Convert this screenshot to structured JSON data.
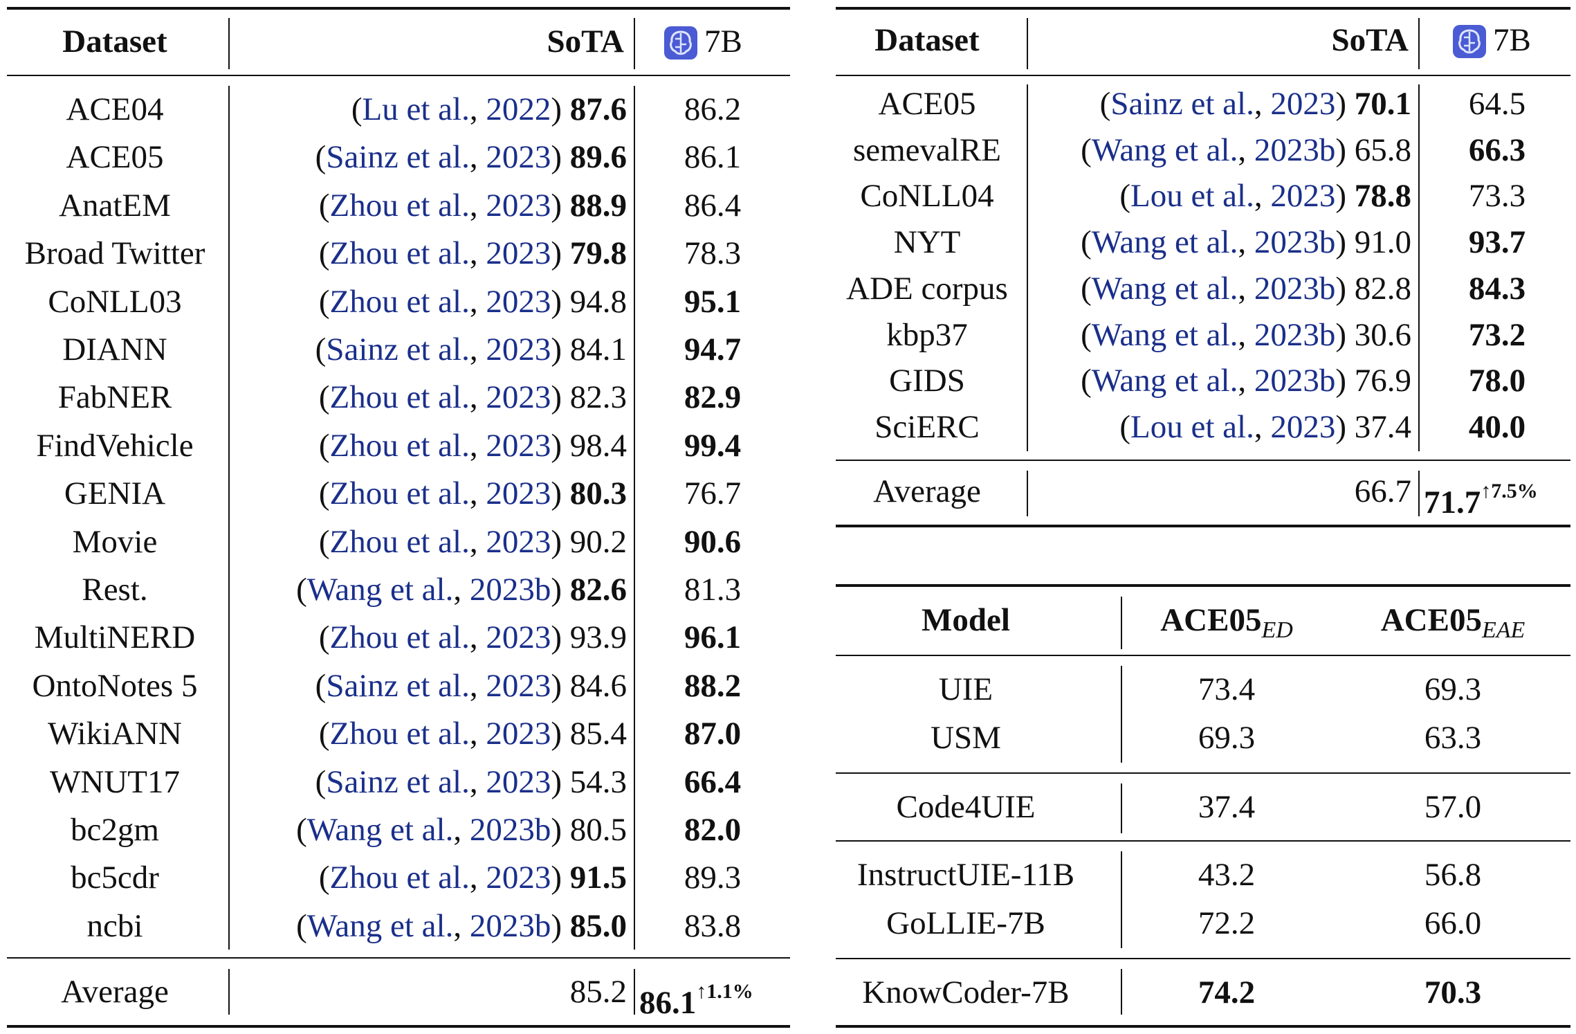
{
  "ner_table": {
    "headers": {
      "dataset": "Dataset",
      "sota": "SoTA",
      "model": "7B"
    },
    "rows": [
      {
        "dataset": "ACE04",
        "cite_open": "(",
        "cite_author": "Lu et al.",
        "cite_sep": ", ",
        "cite_year": "2022",
        "cite_close": ")",
        "sota": "87.6",
        "model": "86.2",
        "bold": "sota"
      },
      {
        "dataset": "ACE05",
        "cite_open": "(",
        "cite_author": "Sainz et al.",
        "cite_sep": ", ",
        "cite_year": "2023",
        "cite_close": ")",
        "sota": "89.6",
        "model": "86.1",
        "bold": "sota"
      },
      {
        "dataset": "AnatEM",
        "cite_open": "(",
        "cite_author": "Zhou et al.",
        "cite_sep": ", ",
        "cite_year": "2023",
        "cite_close": ")",
        "sota": "88.9",
        "model": "86.4",
        "bold": "sota"
      },
      {
        "dataset": "Broad Twitter",
        "cite_open": "(",
        "cite_author": "Zhou et al.",
        "cite_sep": ", ",
        "cite_year": "2023",
        "cite_close": ")",
        "sota": "79.8",
        "model": "78.3",
        "bold": "sota"
      },
      {
        "dataset": "CoNLL03",
        "cite_open": "(",
        "cite_author": "Zhou et al.",
        "cite_sep": ", ",
        "cite_year": "2023",
        "cite_close": ")",
        "sota": "94.8",
        "model": "95.1",
        "bold": "model"
      },
      {
        "dataset": "DIANN",
        "cite_open": "(",
        "cite_author": "Sainz et al.",
        "cite_sep": ", ",
        "cite_year": "2023",
        "cite_close": ")",
        "sota": "84.1",
        "model": "94.7",
        "bold": "model"
      },
      {
        "dataset": "FabNER",
        "cite_open": "(",
        "cite_author": "Zhou et al.",
        "cite_sep": ", ",
        "cite_year": "2023",
        "cite_close": ")",
        "sota": "82.3",
        "model": "82.9",
        "bold": "model"
      },
      {
        "dataset": "FindVehicle",
        "cite_open": "(",
        "cite_author": "Zhou et al.",
        "cite_sep": ", ",
        "cite_year": "2023",
        "cite_close": ")",
        "sota": "98.4",
        "model": "99.4",
        "bold": "model"
      },
      {
        "dataset": "GENIA",
        "cite_open": "(",
        "cite_author": "Zhou et al.",
        "cite_sep": ", ",
        "cite_year": "2023",
        "cite_close": ")",
        "sota": "80.3",
        "model": "76.7",
        "bold": "sota"
      },
      {
        "dataset": "Movie",
        "cite_open": "(",
        "cite_author": "Zhou et al.",
        "cite_sep": ", ",
        "cite_year": "2023",
        "cite_close": ")",
        "sota": "90.2",
        "model": "90.6",
        "bold": "model"
      },
      {
        "dataset": "Rest.",
        "cite_open": "(",
        "cite_author": "Wang et al.",
        "cite_sep": ", ",
        "cite_year": "2023b",
        "cite_close": ")",
        "sota": "82.6",
        "model": "81.3",
        "bold": "sota"
      },
      {
        "dataset": "MultiNERD",
        "cite_open": "(",
        "cite_author": "Zhou et al.",
        "cite_sep": ", ",
        "cite_year": "2023",
        "cite_close": ")",
        "sota": "93.9",
        "model": "96.1",
        "bold": "model"
      },
      {
        "dataset": "OntoNotes 5",
        "cite_open": "(",
        "cite_author": "Sainz et al.",
        "cite_sep": ", ",
        "cite_year": "2023",
        "cite_close": ")",
        "sota": "84.6",
        "model": "88.2",
        "bold": "model"
      },
      {
        "dataset": "WikiANN",
        "cite_open": "(",
        "cite_author": "Zhou et al.",
        "cite_sep": ", ",
        "cite_year": "2023",
        "cite_close": ")",
        "sota": "85.4",
        "model": "87.0",
        "bold": "model"
      },
      {
        "dataset": "WNUT17",
        "cite_open": "(",
        "cite_author": "Sainz et al.",
        "cite_sep": ", ",
        "cite_year": "2023",
        "cite_close": ")",
        "sota": "54.3",
        "model": "66.4",
        "bold": "model"
      },
      {
        "dataset": "bc2gm",
        "cite_open": "(",
        "cite_author": "Wang et al.",
        "cite_sep": ", ",
        "cite_year": "2023b",
        "cite_close": ")",
        "sota": "80.5",
        "model": "82.0",
        "bold": "model"
      },
      {
        "dataset": "bc5cdr",
        "cite_open": "(",
        "cite_author": "Zhou et al.",
        "cite_sep": ", ",
        "cite_year": "2023",
        "cite_close": ")",
        "sota": "91.5",
        "model": "89.3",
        "bold": "sota"
      },
      {
        "dataset": "ncbi",
        "cite_open": "(",
        "cite_author": "Wang et al.",
        "cite_sep": ", ",
        "cite_year": "2023b",
        "cite_close": ")",
        "sota": "85.0",
        "model": "83.8",
        "bold": "sota"
      }
    ],
    "average": {
      "label": "Average",
      "sota": "85.2",
      "model": "86.1",
      "gain": "↑1.1%"
    }
  },
  "re_table": {
    "headers": {
      "dataset": "Dataset",
      "sota": "SoTA",
      "model": "7B"
    },
    "rows": [
      {
        "dataset": "ACE05",
        "cite_open": "(",
        "cite_author": "Sainz et al.",
        "cite_sep": ", ",
        "cite_year": "2023",
        "cite_close": ")",
        "sota": "70.1",
        "model": "64.5",
        "bold": "sota"
      },
      {
        "dataset": "semevalRE",
        "cite_open": "(",
        "cite_author": "Wang et al.",
        "cite_sep": ", ",
        "cite_year": "2023b",
        "cite_close": ")",
        "sota": "65.8",
        "model": "66.3",
        "bold": "model"
      },
      {
        "dataset": "CoNLL04",
        "cite_open": "(",
        "cite_author": "Lou et al.",
        "cite_sep": ", ",
        "cite_year": "2023",
        "cite_close": ")",
        "sota": "78.8",
        "model": "73.3",
        "bold": "sota"
      },
      {
        "dataset": "NYT",
        "cite_open": "(",
        "cite_author": "Wang et al.",
        "cite_sep": ", ",
        "cite_year": "2023b",
        "cite_close": ")",
        "sota": "91.0",
        "model": "93.7",
        "bold": "model"
      },
      {
        "dataset": "ADE corpus",
        "cite_open": "(",
        "cite_author": "Wang et al.",
        "cite_sep": ", ",
        "cite_year": "2023b",
        "cite_close": ")",
        "sota": "82.8",
        "model": "84.3",
        "bold": "model"
      },
      {
        "dataset": "kbp37",
        "cite_open": "(",
        "cite_author": "Wang et al.",
        "cite_sep": ", ",
        "cite_year": "2023b",
        "cite_close": ")",
        "sota": "30.6",
        "model": "73.2",
        "bold": "model"
      },
      {
        "dataset": "GIDS",
        "cite_open": "(",
        "cite_author": "Wang et al.",
        "cite_sep": ", ",
        "cite_year": "2023b",
        "cite_close": ")",
        "sota": "76.9",
        "model": "78.0",
        "bold": "model"
      },
      {
        "dataset": "SciERC",
        "cite_open": "(",
        "cite_author": "Lou et al.",
        "cite_sep": ", ",
        "cite_year": "2023",
        "cite_close": ")",
        "sota": "37.4",
        "model": "40.0",
        "bold": "model"
      }
    ],
    "average": {
      "label": "Average",
      "sota": "66.7",
      "model": "71.7",
      "gain": "↑7.5%"
    }
  },
  "ee_table": {
    "headers": {
      "model": "Model",
      "ed_main": "ACE05",
      "ed_sub": "ED",
      "eae_main": "ACE05",
      "eae_sub": "EAE"
    },
    "groups": [
      [
        {
          "model": "UIE",
          "ed": "73.4",
          "eae": "69.3"
        },
        {
          "model": "USM",
          "ed": "69.3",
          "eae": "63.3"
        }
      ],
      [
        {
          "model": "Code4UIE",
          "ed": "37.4",
          "eae": "57.0"
        }
      ],
      [
        {
          "model": "InstructUIE-11B",
          "ed": "43.2",
          "eae": "56.8"
        },
        {
          "model": "GoLLIE-7B",
          "ed": "72.2",
          "eae": "66.0"
        }
      ],
      [
        {
          "model": "KnowCoder-7B",
          "ed": "74.2",
          "eae": "70.3",
          "bold": true
        }
      ]
    ]
  },
  "colors": {
    "citation": "#1a2f8a",
    "text": "#111111",
    "icon": "#4a5bd4"
  }
}
